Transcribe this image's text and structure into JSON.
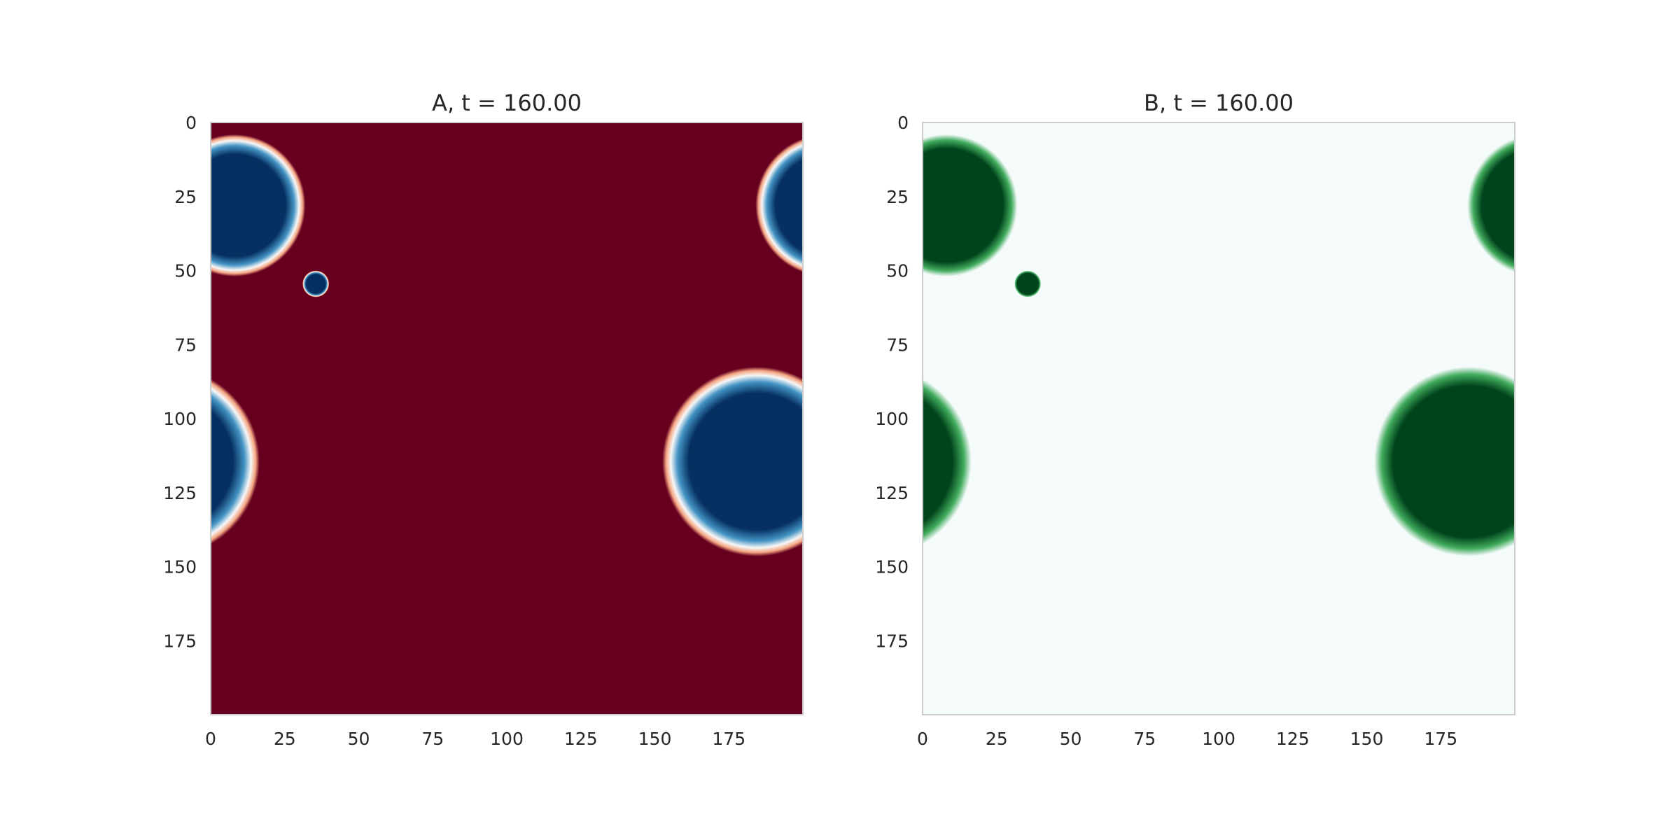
{
  "chart_data": [
    {
      "type": "heatmap",
      "title": "A, t = 160.00",
      "colormap": "RdBu",
      "background_color": "#67001f",
      "spot_color": "#053061",
      "ring_color": "#f7f7f7",
      "grid": false,
      "xlim": [
        0,
        200
      ],
      "ylim": [
        200,
        0
      ],
      "x_ticks": [
        0,
        25,
        50,
        75,
        100,
        125,
        150,
        175
      ],
      "y_ticks": [
        0,
        25,
        50,
        75,
        100,
        125,
        150,
        175
      ],
      "x_tick_labels": [
        "0",
        "25",
        "50",
        "75",
        "100",
        "125",
        "150",
        "175"
      ],
      "y_tick_labels": [
        "0",
        "25",
        "50",
        "75",
        "100",
        "125",
        "150",
        "175"
      ],
      "spots": [
        {
          "x": 8,
          "y": 28,
          "r": 24
        },
        {
          "x": 208,
          "y": 28,
          "r": 24
        },
        {
          "x": 35.5,
          "y": 54.5,
          "r": 4.5
        },
        {
          "x": 184.5,
          "y": 114.5,
          "r": 32
        },
        {
          "x": -15.5,
          "y": 114.5,
          "r": 32
        }
      ]
    },
    {
      "type": "heatmap",
      "title": "B, t = 160.00",
      "colormap": "BuGn",
      "background_color": "#f5fbfb",
      "spot_color": "#00441b",
      "grid": false,
      "xlim": [
        0,
        200
      ],
      "ylim": [
        200,
        0
      ],
      "x_ticks": [
        0,
        25,
        50,
        75,
        100,
        125,
        150,
        175
      ],
      "y_ticks": [
        0,
        25,
        50,
        75,
        100,
        125,
        150,
        175
      ],
      "x_tick_labels": [
        "0",
        "25",
        "50",
        "75",
        "100",
        "125",
        "150",
        "175"
      ],
      "y_tick_labels": [
        "0",
        "25",
        "50",
        "75",
        "100",
        "125",
        "150",
        "175"
      ],
      "spots": [
        {
          "x": 8,
          "y": 28,
          "r": 24
        },
        {
          "x": 208,
          "y": 28,
          "r": 24
        },
        {
          "x": 35.5,
          "y": 54.5,
          "r": 4.5
        },
        {
          "x": 184.5,
          "y": 114.5,
          "r": 32
        },
        {
          "x": -15.5,
          "y": 114.5,
          "r": 32
        }
      ]
    }
  ]
}
